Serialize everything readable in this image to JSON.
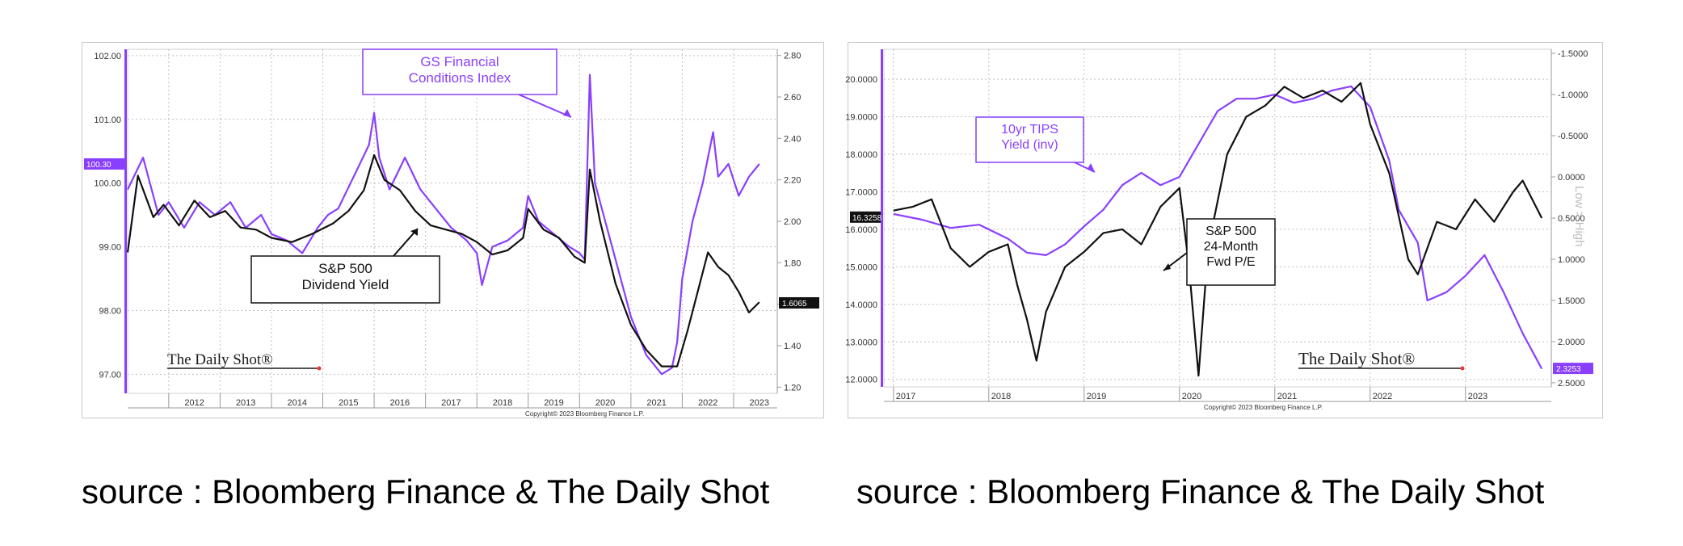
{
  "chart_data": [
    {
      "type": "line",
      "x_labels": [
        "2012",
        "2013",
        "2014",
        "2015",
        "2016",
        "2017",
        "2018",
        "2019",
        "2020",
        "2021",
        "2022",
        "2023"
      ],
      "left_axis": {
        "ticks": [
          "102.00",
          "101.00",
          "100.00",
          "99.00",
          "98.00",
          "97.00"
        ],
        "ylim": [
          96.7,
          102.1
        ]
      },
      "right_axis": {
        "ticks": [
          "2.80",
          "2.60",
          "2.40",
          "2.20",
          "2.00",
          "1.80",
          "1.60",
          "1.40",
          "1.20"
        ],
        "ylim": [
          1.17,
          2.83
        ]
      },
      "last_value_left": "100.30",
      "last_value_right": "1.6065",
      "copyright": "Copyright© 2023 Bloomberg Finance L.P.",
      "watermark": "The Daily Shot®",
      "series": [
        {
          "label_lines": [
            "GS Financial",
            "Conditions Index"
          ],
          "color": "#8a3ffc",
          "axis": "left",
          "points": [
            [
              2011.2,
              99.9
            ],
            [
              2011.5,
              100.4
            ],
            [
              2011.8,
              99.5
            ],
            [
              2012.0,
              99.7
            ],
            [
              2012.3,
              99.3
            ],
            [
              2012.6,
              99.7
            ],
            [
              2012.9,
              99.5
            ],
            [
              2013.2,
              99.7
            ],
            [
              2013.5,
              99.3
            ],
            [
              2013.8,
              99.5
            ],
            [
              2014.0,
              99.2
            ],
            [
              2014.3,
              99.1
            ],
            [
              2014.6,
              98.9
            ],
            [
              2014.9,
              99.3
            ],
            [
              2015.1,
              99.5
            ],
            [
              2015.3,
              99.6
            ],
            [
              2015.6,
              100.1
            ],
            [
              2015.9,
              100.6
            ],
            [
              2016.0,
              101.1
            ],
            [
              2016.1,
              100.4
            ],
            [
              2016.3,
              99.9
            ],
            [
              2016.6,
              100.4
            ],
            [
              2016.9,
              99.9
            ],
            [
              2017.2,
              99.6
            ],
            [
              2017.5,
              99.3
            ],
            [
              2017.8,
              99.1
            ],
            [
              2018.0,
              98.9
            ],
            [
              2018.1,
              98.4
            ],
            [
              2018.3,
              99.0
            ],
            [
              2018.6,
              99.1
            ],
            [
              2018.9,
              99.3
            ],
            [
              2019.0,
              99.8
            ],
            [
              2019.2,
              99.4
            ],
            [
              2019.5,
              99.2
            ],
            [
              2019.8,
              99.0
            ],
            [
              2020.0,
              98.9
            ],
            [
              2020.1,
              98.8
            ],
            [
              2020.2,
              101.7
            ],
            [
              2020.3,
              100.0
            ],
            [
              2020.5,
              99.4
            ],
            [
              2020.8,
              98.5
            ],
            [
              2021.0,
              97.9
            ],
            [
              2021.3,
              97.3
            ],
            [
              2021.6,
              97.0
            ],
            [
              2021.8,
              97.1
            ],
            [
              2021.9,
              97.5
            ],
            [
              2022.0,
              98.5
            ],
            [
              2022.2,
              99.4
            ],
            [
              2022.4,
              100.0
            ],
            [
              2022.6,
              100.8
            ],
            [
              2022.7,
              100.1
            ],
            [
              2022.9,
              100.3
            ],
            [
              2023.1,
              99.8
            ],
            [
              2023.3,
              100.1
            ],
            [
              2023.5,
              100.3
            ]
          ]
        },
        {
          "label_lines": [
            "S&P 500",
            "Dividend Yield"
          ],
          "color": "#111111",
          "axis": "right",
          "points": [
            [
              2011.2,
              1.85
            ],
            [
              2011.4,
              2.22
            ],
            [
              2011.7,
              2.02
            ],
            [
              2011.9,
              2.08
            ],
            [
              2012.2,
              1.98
            ],
            [
              2012.5,
              2.1
            ],
            [
              2012.8,
              2.02
            ],
            [
              2013.1,
              2.05
            ],
            [
              2013.4,
              1.97
            ],
            [
              2013.7,
              1.96
            ],
            [
              2014.0,
              1.92
            ],
            [
              2014.4,
              1.9
            ],
            [
              2014.8,
              1.94
            ],
            [
              2015.2,
              1.99
            ],
            [
              2015.5,
              2.05
            ],
            [
              2015.8,
              2.15
            ],
            [
              2016.0,
              2.32
            ],
            [
              2016.2,
              2.2
            ],
            [
              2016.5,
              2.15
            ],
            [
              2016.8,
              2.05
            ],
            [
              2017.1,
              1.98
            ],
            [
              2017.4,
              1.96
            ],
            [
              2017.7,
              1.94
            ],
            [
              2018.0,
              1.9
            ],
            [
              2018.3,
              1.84
            ],
            [
              2018.6,
              1.86
            ],
            [
              2018.9,
              1.92
            ],
            [
              2019.0,
              2.06
            ],
            [
              2019.3,
              1.96
            ],
            [
              2019.6,
              1.92
            ],
            [
              2019.9,
              1.83
            ],
            [
              2020.1,
              1.8
            ],
            [
              2020.2,
              2.25
            ],
            [
              2020.4,
              2.0
            ],
            [
              2020.7,
              1.7
            ],
            [
              2021.0,
              1.5
            ],
            [
              2021.3,
              1.38
            ],
            [
              2021.6,
              1.3
            ],
            [
              2021.9,
              1.3
            ],
            [
              2022.1,
              1.47
            ],
            [
              2022.3,
              1.66
            ],
            [
              2022.5,
              1.85
            ],
            [
              2022.7,
              1.78
            ],
            [
              2022.9,
              1.74
            ],
            [
              2023.1,
              1.66
            ],
            [
              2023.3,
              1.56
            ],
            [
              2023.5,
              1.61
            ]
          ]
        }
      ]
    },
    {
      "type": "line",
      "x_labels": [
        "2017",
        "2018",
        "2019",
        "2020",
        "2021",
        "2022",
        "2023"
      ],
      "left_axis": {
        "ticks": [
          "20.0000",
          "19.0000",
          "18.0000",
          "17.0000",
          "16.0000",
          "15.0000",
          "14.0000",
          "13.0000",
          "12.0000"
        ],
        "ylim": [
          11.8,
          20.8
        ]
      },
      "right_axis": {
        "ticks": [
          "-1.5000",
          "-1.0000",
          "-0.5000",
          "0.0000",
          "0.5000",
          "1.0000",
          "1.5000",
          "2.0000",
          "2.5000"
        ],
        "ylim": [
          -1.55,
          2.55
        ],
        "label": "Low > High"
      },
      "last_value_left": "16.3258",
      "last_value_right": "2.3253",
      "copyright": "Copyright© 2023 Bloomberg Finance L.P.",
      "watermark": "The Daily Shot®",
      "series": [
        {
          "label_lines": [
            "10yr TIPS",
            "Yield (inv)"
          ],
          "color": "#8a3ffc",
          "axis": "right",
          "points": [
            [
              2017.0,
              0.45
            ],
            [
              2017.3,
              0.52
            ],
            [
              2017.6,
              0.62
            ],
            [
              2017.9,
              0.58
            ],
            [
              2018.2,
              0.75
            ],
            [
              2018.4,
              0.92
            ],
            [
              2018.6,
              0.95
            ],
            [
              2018.8,
              0.82
            ],
            [
              2019.0,
              0.6
            ],
            [
              2019.2,
              0.4
            ],
            [
              2019.4,
              0.1
            ],
            [
              2019.6,
              -0.05
            ],
            [
              2019.8,
              0.1
            ],
            [
              2020.0,
              0.0
            ],
            [
              2020.1,
              -0.2
            ],
            [
              2020.2,
              -0.4
            ],
            [
              2020.4,
              -0.8
            ],
            [
              2020.6,
              -0.95
            ],
            [
              2020.8,
              -0.95
            ],
            [
              2021.0,
              -1.0
            ],
            [
              2021.2,
              -0.9
            ],
            [
              2021.4,
              -0.95
            ],
            [
              2021.6,
              -1.05
            ],
            [
              2021.8,
              -1.1
            ],
            [
              2022.0,
              -0.85
            ],
            [
              2022.2,
              -0.2
            ],
            [
              2022.3,
              0.4
            ],
            [
              2022.5,
              0.8
            ],
            [
              2022.6,
              1.5
            ],
            [
              2022.8,
              1.4
            ],
            [
              2023.0,
              1.2
            ],
            [
              2023.2,
              0.95
            ],
            [
              2023.4,
              1.4
            ],
            [
              2023.6,
              1.9
            ],
            [
              2023.8,
              2.33
            ]
          ]
        },
        {
          "label_lines": [
            "S&P 500",
            "24-Month",
            "Fwd P/E"
          ],
          "color": "#111111",
          "axis": "left",
          "points": [
            [
              2017.0,
              16.5
            ],
            [
              2017.2,
              16.6
            ],
            [
              2017.4,
              16.8
            ],
            [
              2017.6,
              15.5
            ],
            [
              2017.8,
              15.0
            ],
            [
              2018.0,
              15.4
            ],
            [
              2018.2,
              15.6
            ],
            [
              2018.3,
              14.5
            ],
            [
              2018.4,
              13.6
            ],
            [
              2018.5,
              12.5
            ],
            [
              2018.6,
              13.8
            ],
            [
              2018.8,
              15.0
            ],
            [
              2019.0,
              15.4
            ],
            [
              2019.2,
              15.9
            ],
            [
              2019.4,
              16.0
            ],
            [
              2019.6,
              15.6
            ],
            [
              2019.8,
              16.6
            ],
            [
              2020.0,
              17.1
            ],
            [
              2020.1,
              15.0
            ],
            [
              2020.2,
              12.1
            ],
            [
              2020.3,
              15.5
            ],
            [
              2020.5,
              18.0
            ],
            [
              2020.7,
              19.0
            ],
            [
              2020.9,
              19.3
            ],
            [
              2021.1,
              19.8
            ],
            [
              2021.3,
              19.5
            ],
            [
              2021.5,
              19.7
            ],
            [
              2021.7,
              19.4
            ],
            [
              2021.9,
              19.9
            ],
            [
              2022.0,
              18.8
            ],
            [
              2022.2,
              17.5
            ],
            [
              2022.4,
              15.2
            ],
            [
              2022.5,
              14.8
            ],
            [
              2022.7,
              16.2
            ],
            [
              2022.9,
              16.0
            ],
            [
              2023.1,
              16.8
            ],
            [
              2023.3,
              16.2
            ],
            [
              2023.5,
              17.0
            ],
            [
              2023.6,
              17.3
            ],
            [
              2023.8,
              16.3
            ]
          ]
        }
      ]
    }
  ],
  "captions": [
    "source : Bloomberg Finance & The Daily Shot",
    "source : Bloomberg Finance & The Daily Shot"
  ]
}
